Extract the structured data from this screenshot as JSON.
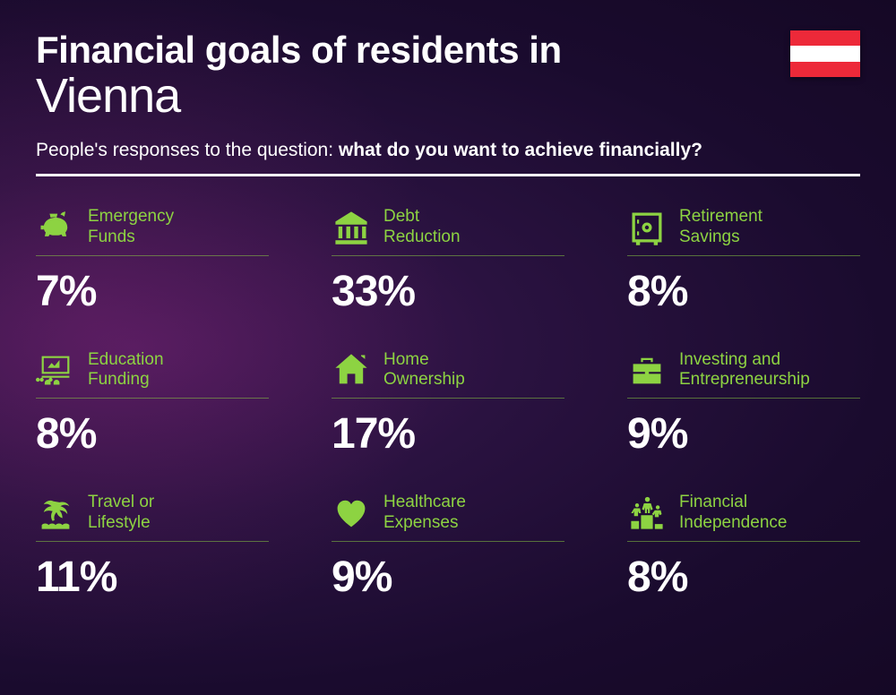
{
  "title_line1": "Financial goals of residents in",
  "title_line2": "Vienna",
  "subtitle_prefix": "People's responses to the question: ",
  "subtitle_bold": "what do you want to achieve financially?",
  "accent_color": "#8dd342",
  "text_color": "#ffffff",
  "background_gradient": [
    "#4a1a5a",
    "#2a1240",
    "#1a0b2e",
    "#150825"
  ],
  "flag": {
    "stripes": [
      "#ed2939",
      "#ffffff",
      "#ed2939"
    ]
  },
  "value_fontsize": 48,
  "label_fontsize": 19,
  "title_fontsize_1": 42,
  "title_fontsize_2": 54,
  "items": [
    {
      "icon": "piggy-bank-icon",
      "label": "Emergency Funds",
      "value": "7%"
    },
    {
      "icon": "bank-icon",
      "label": "Debt Reduction",
      "value": "33%"
    },
    {
      "icon": "safe-icon",
      "label": "Retirement Savings",
      "value": "8%"
    },
    {
      "icon": "presentation-icon",
      "label": "Education Funding",
      "value": "8%"
    },
    {
      "icon": "house-icon",
      "label": "Home Ownership",
      "value": "17%"
    },
    {
      "icon": "briefcase-icon",
      "label": "Investing and Entrepreneurship",
      "value": "9%"
    },
    {
      "icon": "palm-icon",
      "label": "Travel or Lifestyle",
      "value": "11%"
    },
    {
      "icon": "heart-pulse-icon",
      "label": "Healthcare Expenses",
      "value": "9%"
    },
    {
      "icon": "podium-icon",
      "label": "Financial Independence",
      "value": "8%"
    }
  ]
}
